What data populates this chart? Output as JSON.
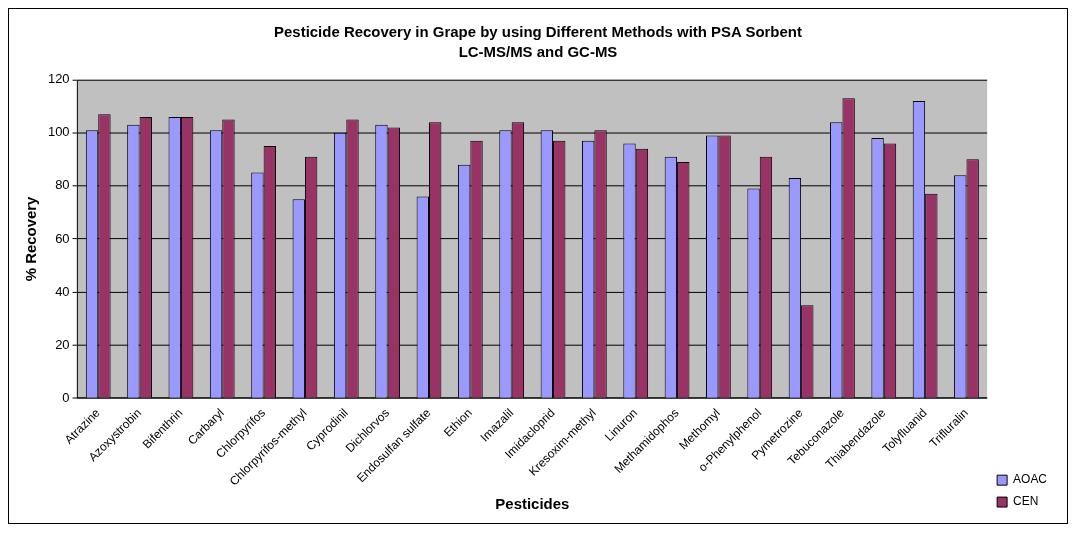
{
  "chart_data": {
    "type": "bar",
    "title": "Pesticide Recovery in Grape by using Different Methods with PSA Sorbent",
    "subtitle": "LC-MS/MS and GC-MS",
    "xlabel": "Pesticides",
    "ylabel": "% Recovery",
    "categories": [
      "Atrazine",
      "Azoxystrobin",
      "Bifenthrin",
      "Carbaryl",
      "Chlorpyrifos",
      "Chlorpyrifos-methyl",
      "Cyprodinil",
      "Dichlorvos",
      "Endosulfan sulfate",
      "Ethion",
      "Imazalil",
      "Imidacloprid",
      "Kresoxim-methyl",
      "Linuron",
      "Methamidophos",
      "Methomyl",
      "o-Phenylphenol",
      "Pymetrozine",
      "Tebuconazole",
      "Thiabendazole",
      "Tolyfluanid",
      "Trifluralin"
    ],
    "series": [
      {
        "name": "AOAC",
        "color": "#9999ff",
        "values": [
          101,
          103,
          106,
          101,
          85,
          75,
          100,
          103,
          76,
          88,
          101,
          101,
          97,
          96,
          91,
          99,
          79,
          83,
          104,
          98,
          112,
          84
        ]
      },
      {
        "name": "CEN",
        "color": "#993366",
        "values": [
          107,
          106,
          106,
          105,
          95,
          91,
          105,
          102,
          104,
          97,
          104,
          97,
          101,
          94,
          89,
          99,
          91,
          35,
          113,
          96,
          77,
          90
        ]
      }
    ],
    "ylim": [
      0,
      120
    ],
    "yticks": [
      0,
      20,
      40,
      60,
      80,
      100,
      120
    ],
    "grid": "y",
    "legend": "bottom right"
  }
}
